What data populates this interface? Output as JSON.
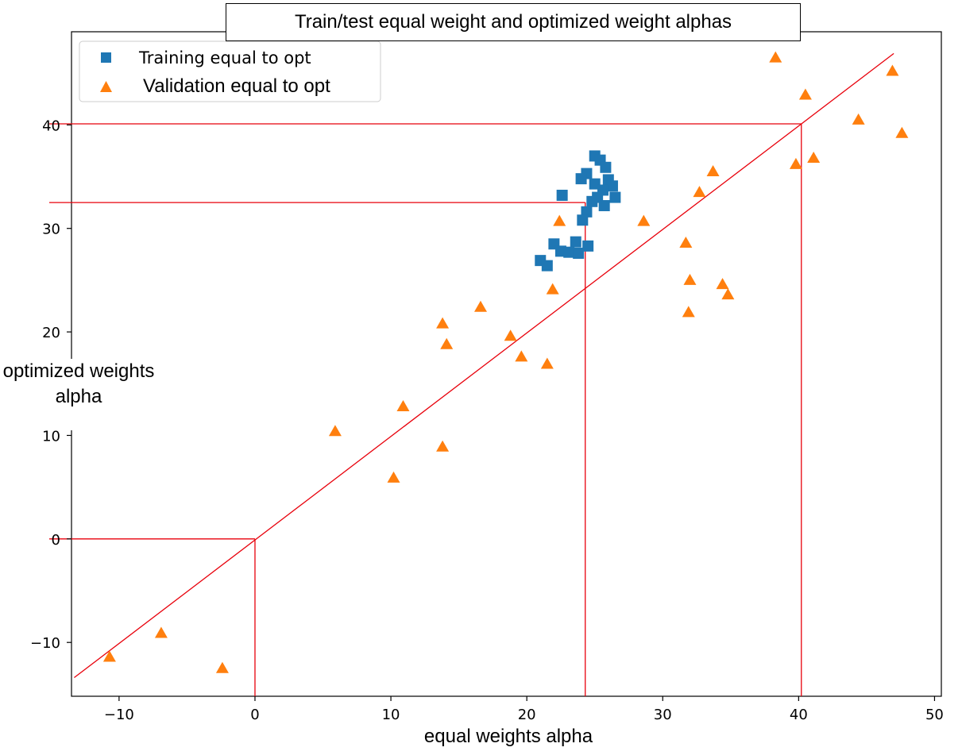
{
  "chart_data": {
    "type": "scatter",
    "title": "Train/test equal weight and optimized weight alphas",
    "xlabel": "equal weights alpha",
    "ylabel": "optimized weights alpha",
    "xlim": [
      -13.5,
      50.5
    ],
    "ylim": [
      -15.2,
      49
    ],
    "xticks": [
      -10,
      0,
      10,
      20,
      30,
      40,
      50
    ],
    "yticks": [
      -10,
      0,
      10,
      20,
      30,
      40
    ],
    "xtick_labels": [
      "−10",
      "0",
      "10",
      "20",
      "30",
      "40",
      "50"
    ],
    "ytick_labels": [
      "−10",
      "0",
      "10",
      "20",
      "30",
      "40"
    ],
    "legend_position": "top-left",
    "grid": false,
    "series": [
      {
        "name": "Training equal to opt",
        "marker": "square",
        "color": "#1f77b4",
        "points": [
          [
            25.0,
            37.0
          ],
          [
            25.4,
            36.6
          ],
          [
            25.8,
            35.9
          ],
          [
            24.4,
            35.3
          ],
          [
            24.0,
            34.8
          ],
          [
            26.0,
            34.7
          ],
          [
            26.3,
            34.1
          ],
          [
            25.0,
            34.3
          ],
          [
            25.6,
            33.7
          ],
          [
            25.2,
            33.0
          ],
          [
            26.5,
            33.0
          ],
          [
            22.6,
            33.2
          ],
          [
            24.8,
            32.6
          ],
          [
            25.7,
            32.2
          ],
          [
            24.4,
            31.6
          ],
          [
            24.1,
            30.8
          ],
          [
            22.0,
            28.5
          ],
          [
            23.6,
            28.7
          ],
          [
            24.5,
            28.3
          ],
          [
            22.5,
            27.8
          ],
          [
            23.1,
            27.7
          ],
          [
            23.8,
            27.6
          ],
          [
            21.0,
            26.9
          ],
          [
            21.5,
            26.4
          ]
        ]
      },
      {
        "name": "Validation equal to opt",
        "marker": "triangle",
        "color": "#ff7f0e",
        "points": [
          [
            38.3,
            46.5
          ],
          [
            46.9,
            45.2
          ],
          [
            40.5,
            42.9
          ],
          [
            44.4,
            40.5
          ],
          [
            47.6,
            39.2
          ],
          [
            39.8,
            36.2
          ],
          [
            41.1,
            36.8
          ],
          [
            33.7,
            35.5
          ],
          [
            32.7,
            33.5
          ],
          [
            28.6,
            30.7
          ],
          [
            22.4,
            30.7
          ],
          [
            31.7,
            28.6
          ],
          [
            32.0,
            25.0
          ],
          [
            34.4,
            24.6
          ],
          [
            34.8,
            23.6
          ],
          [
            31.9,
            21.9
          ],
          [
            21.9,
            24.1
          ],
          [
            16.6,
            22.4
          ],
          [
            13.8,
            20.8
          ],
          [
            18.8,
            19.6
          ],
          [
            14.1,
            18.8
          ],
          [
            19.6,
            17.6
          ],
          [
            21.5,
            16.9
          ],
          [
            10.9,
            12.8
          ],
          [
            5.9,
            10.4
          ],
          [
            13.8,
            8.9
          ],
          [
            10.2,
            5.9
          ],
          [
            -10.7,
            -11.4
          ],
          [
            -6.9,
            -9.1
          ],
          [
            -2.4,
            -12.5
          ]
        ]
      }
    ],
    "reference_line": {
      "from": [
        -13.3,
        -13.4
      ],
      "to": [
        47.0,
        46.9
      ]
    },
    "guide_lines": [
      {
        "x": 0,
        "y": 0
      },
      {
        "x": 24.3,
        "y": 32.5
      },
      {
        "x": 40.2,
        "y": 40.1
      }
    ]
  }
}
